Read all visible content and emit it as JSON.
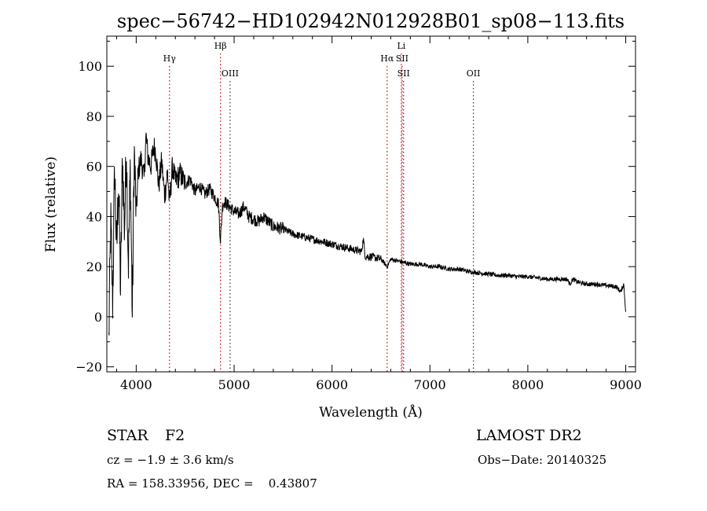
{
  "chart_data": {
    "type": "line",
    "title": "spec−56742−HD102942N012928B01_sp08−113.fits",
    "xlabel": "Wavelength (Å)",
    "ylabel": "Flux (relative)",
    "xlim": [
      3700,
      9100
    ],
    "ylim": [
      -22,
      112
    ],
    "x_ticks": [
      {
        "value": 4000,
        "label": "4000"
      },
      {
        "value": 5000,
        "label": "5000"
      },
      {
        "value": 6000,
        "label": "6000"
      },
      {
        "value": 7000,
        "label": "7000"
      },
      {
        "value": 8000,
        "label": "8000"
      },
      {
        "value": 9000,
        "label": "9000"
      }
    ],
    "y_ticks": [
      {
        "value": -20,
        "label": "−20"
      },
      {
        "value": 0,
        "label": "0"
      },
      {
        "value": 20,
        "label": "20"
      },
      {
        "value": 40,
        "label": "40"
      },
      {
        "value": 60,
        "label": "60"
      },
      {
        "value": 80,
        "label": "80"
      },
      {
        "value": 100,
        "label": "100"
      }
    ],
    "grid": false,
    "series": [
      {
        "x": [
          3720,
          3740,
          3760,
          3780,
          3800,
          3820,
          3840,
          3860,
          3880,
          3900,
          3920,
          3940,
          3960,
          3980,
          4000,
          4020,
          4050,
          4080,
          4100,
          4120,
          4150,
          4180,
          4200,
          4230,
          4260,
          4290,
          4320,
          4340,
          4370,
          4400,
          4450,
          4500,
          4550,
          4600,
          4650,
          4700,
          4750,
          4800,
          4840,
          4861,
          4880,
          4900,
          4950,
          5000,
          5050,
          5100,
          5150,
          5200,
          5250,
          5300,
          5400,
          5500,
          5600,
          5700,
          5800,
          5900,
          6000,
          6100,
          6200,
          6300,
          6320,
          6340,
          6400,
          6500,
          6563,
          6600,
          6700,
          6800,
          6900,
          7000,
          7100,
          7200,
          7300,
          7400,
          7500,
          7600,
          7700,
          7800,
          7900,
          8000,
          8100,
          8200,
          8300,
          8400,
          8430,
          8460,
          8500,
          8540,
          8600,
          8700,
          8800,
          8900,
          8950,
          8980,
          9000
        ],
        "y": [
          -10,
          38,
          5,
          60,
          25,
          55,
          10,
          64,
          35,
          68,
          20,
          60,
          0,
          66,
          40,
          58,
          63,
          55,
          72,
          64,
          60,
          68,
          66,
          52,
          62,
          48,
          58,
          45,
          60,
          54,
          57,
          53,
          55,
          50,
          52,
          49,
          51,
          48,
          45,
          30,
          44,
          46,
          44,
          42,
          41,
          44,
          40,
          39,
          38,
          40,
          36,
          35,
          33,
          32,
          31,
          30,
          29,
          28,
          27,
          26,
          31,
          24,
          24,
          23,
          20,
          23,
          22,
          21,
          21,
          20,
          20,
          19,
          19,
          18,
          17.5,
          17,
          16.5,
          16.5,
          16,
          16,
          15.5,
          15,
          15,
          15,
          13,
          15,
          14,
          13.5,
          13,
          13,
          12.5,
          12,
          10,
          13,
          2
        ]
      }
    ],
    "line_marks": [
      {
        "label": "Hγ",
        "wavelength": 4340,
        "color": "#cc0000",
        "row": 2
      },
      {
        "label": "Hβ",
        "wavelength": 4861,
        "color": "#cc0000",
        "row": 1
      },
      {
        "label": "OIII",
        "wavelength": 4959,
        "color": "#333333",
        "row": 3
      },
      {
        "label": "Hα",
        "wavelength": 6563,
        "color": "#cc0000",
        "row": 2
      },
      {
        "label": "Li",
        "wavelength": 6708,
        "color": "#cc0000",
        "row": 1
      },
      {
        "label": "SII",
        "wavelength": 6716,
        "color": "#cc0000",
        "row": 2
      },
      {
        "label": "SII",
        "wavelength": 6731,
        "color": "#333333",
        "row": 3
      },
      {
        "label": "OII",
        "wavelength": 7444,
        "color": "#333333",
        "row": 3
      }
    ]
  },
  "info": {
    "object_type": "STAR",
    "subclass": "F2",
    "survey": "LAMOST DR2",
    "redshift": "cz = −1.9 ± 3.6 km/s",
    "obs_date": "Obs−Date: 20140325",
    "coords": "RA = 158.33956, DEC =    0.43807"
  }
}
